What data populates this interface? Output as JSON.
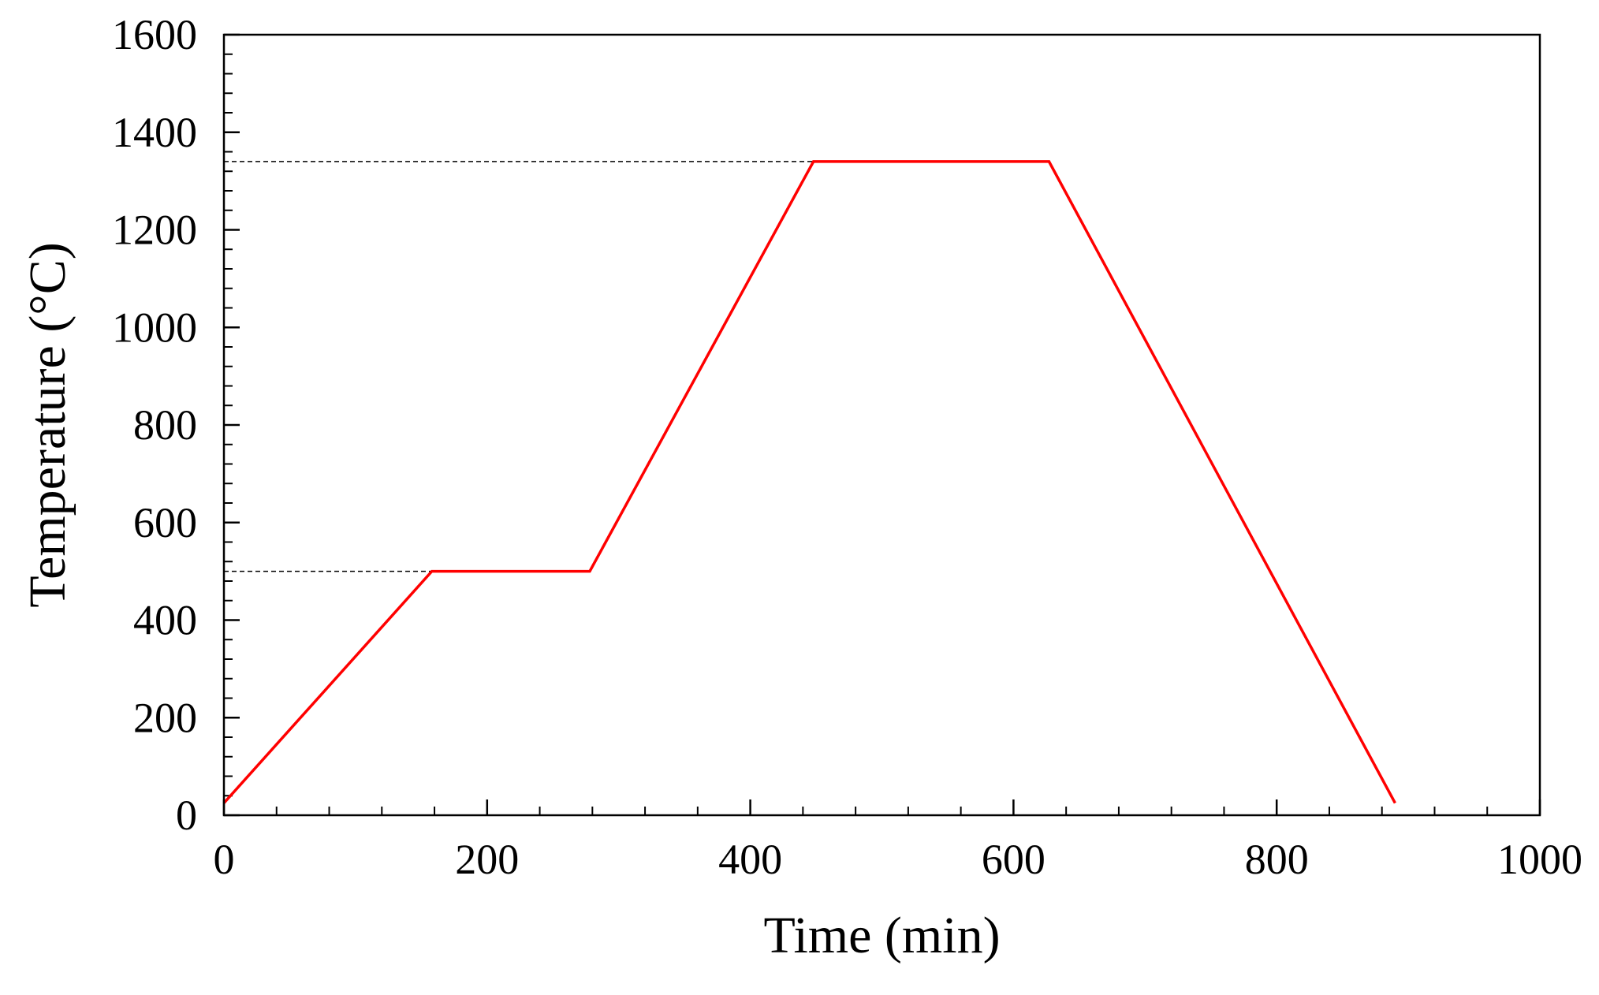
{
  "chart_data": {
    "type": "line",
    "title": "",
    "xlabel": "Time (min)",
    "ylabel": "Temperature (°C)",
    "xlim": [
      0,
      1000
    ],
    "ylim": [
      0,
      1600
    ],
    "x_ticks": [
      0,
      200,
      400,
      600,
      800,
      1000
    ],
    "y_ticks": [
      0,
      200,
      400,
      600,
      800,
      1000,
      1200,
      1400,
      1600
    ],
    "x_minor_step": 40,
    "y_minor_step": 40,
    "grid": false,
    "legend": "none",
    "series": [
      {
        "color": "#ff0000",
        "x": [
          0,
          158,
          278,
          448,
          627,
          890
        ],
        "y": [
          25,
          500,
          500,
          1340,
          1340,
          25
        ]
      }
    ],
    "reference_lines": [
      {
        "style": "dashed",
        "color": "#000000",
        "y": 500,
        "x_from": 0,
        "x_to": 158
      },
      {
        "style": "dashed",
        "color": "#000000",
        "y": 1340,
        "x_from": 0,
        "x_to": 448
      }
    ]
  }
}
